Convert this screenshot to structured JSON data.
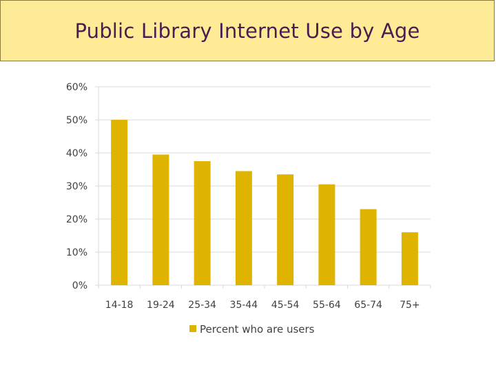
{
  "title": "Public Library Internet Use by Age",
  "colors": {
    "banner_bg": "#fdeb95",
    "title_text": "#4b1c50",
    "bar": "#dfb400",
    "grid": "#d9d9d9",
    "axis_text": "#404040"
  },
  "chart_data": {
    "type": "bar",
    "title": "",
    "xlabel": "",
    "ylabel": "",
    "categories": [
      "14-18",
      "19-24",
      "25-34",
      "35-44",
      "45-54",
      "55-64",
      "65-74",
      "75+"
    ],
    "series": [
      {
        "name": "Percent who are users",
        "values": [
          50,
          39.5,
          37.5,
          34.5,
          33.5,
          30.5,
          23,
          16
        ]
      }
    ],
    "ylim": [
      0,
      60
    ],
    "yticks": [
      0,
      10,
      20,
      30,
      40,
      50,
      60
    ],
    "ytick_labels": [
      "0%",
      "10%",
      "20%",
      "30%",
      "40%",
      "50%",
      "60%"
    ],
    "grid": true,
    "legend_position": "bottom"
  }
}
